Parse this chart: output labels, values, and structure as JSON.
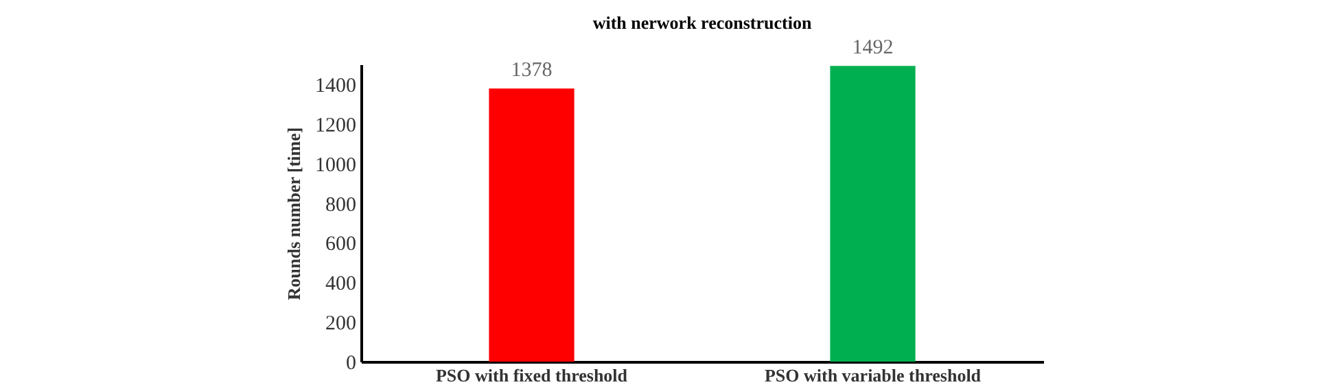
{
  "chart_data": {
    "type": "bar",
    "title": "with nerwork reconstruction",
    "ylabel": "Rounds number [time]",
    "categories": [
      "PSO with fixed threshold",
      "PSO with variable threshold"
    ],
    "values": [
      1378,
      1492
    ],
    "colors": [
      "#ff0000",
      "#00b050"
    ],
    "ylim": [
      0,
      1500
    ],
    "yticks": [
      0,
      200,
      400,
      600,
      800,
      1000,
      1200,
      1400
    ],
    "grid": false,
    "data_labels": true
  }
}
